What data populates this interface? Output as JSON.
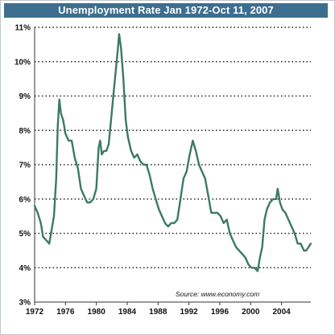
{
  "chart_data": {
    "type": "line",
    "title": "Unemployment Rate Jan 1972-Oct 11, 2007",
    "source": "Source: www.economy.com",
    "xlabel": "",
    "ylabel": "",
    "xlim": [
      1972,
      2007.8
    ],
    "ylim": [
      3,
      11
    ],
    "x_ticks": [
      "1972",
      "1976",
      "1980",
      "1984",
      "1988",
      "1992",
      "1996",
      "2000",
      "2004"
    ],
    "y_ticks": [
      "3%",
      "4%",
      "5%",
      "6%",
      "7%",
      "8%",
      "9%",
      "10%",
      "11%"
    ],
    "grid": "horizontal dotted",
    "legend": "none",
    "colors": {
      "line": "#3c7a62",
      "title_bg": "#3d6e8f",
      "grid": "#222222"
    },
    "series": [
      {
        "x": [
          1972.0,
          1972.4,
          1972.8,
          1973.1,
          1973.5,
          1973.9,
          1974.2,
          1974.5,
          1974.8,
          1975.0,
          1975.2,
          1975.4,
          1975.7,
          1976.0,
          1976.4,
          1976.8,
          1977.2,
          1977.6,
          1978.0,
          1978.4,
          1978.8,
          1979.2,
          1979.6,
          1980.0,
          1980.3,
          1980.5,
          1980.7,
          1981.0,
          1981.3,
          1981.6,
          1981.9,
          1982.2,
          1982.5,
          1982.8,
          1982.95,
          1983.2,
          1983.5,
          1983.8,
          1984.1,
          1984.5,
          1984.9,
          1985.3,
          1985.7,
          1986.1,
          1986.5,
          1986.9,
          1987.3,
          1987.7,
          1988.1,
          1988.5,
          1988.9,
          1989.3,
          1989.7,
          1990.1,
          1990.5,
          1990.9,
          1991.3,
          1991.7,
          1992.1,
          1992.5,
          1992.9,
          1993.3,
          1993.7,
          1994.1,
          1994.5,
          1994.9,
          1995.3,
          1995.7,
          1996.1,
          1996.5,
          1996.9,
          1997.3,
          1997.7,
          1998.1,
          1998.5,
          1998.9,
          1999.3,
          1999.7,
          2000.1,
          2000.5,
          2000.9,
          2001.2,
          2001.5,
          2001.8,
          2002.1,
          2002.5,
          2002.9,
          2003.3,
          2003.5,
          2003.8,
          2004.1,
          2004.5,
          2004.9,
          2005.3,
          2005.7,
          2006.1,
          2006.5,
          2006.9,
          2007.2,
          2007.5,
          2007.78
        ],
        "y": [
          5.8,
          5.6,
          5.3,
          4.9,
          4.8,
          4.7,
          5.1,
          5.5,
          6.6,
          8.1,
          8.9,
          8.5,
          8.3,
          7.9,
          7.7,
          7.7,
          7.2,
          6.9,
          6.3,
          6.1,
          5.9,
          5.9,
          6.0,
          6.3,
          7.5,
          7.7,
          7.3,
          7.4,
          7.4,
          7.6,
          8.3,
          9.0,
          9.7,
          10.4,
          10.8,
          10.4,
          9.5,
          8.3,
          7.8,
          7.4,
          7.2,
          7.3,
          7.1,
          7.0,
          7.0,
          6.7,
          6.3,
          6.0,
          5.7,
          5.5,
          5.3,
          5.2,
          5.3,
          5.3,
          5.4,
          6.0,
          6.6,
          6.8,
          7.3,
          7.7,
          7.4,
          7.0,
          6.8,
          6.6,
          6.1,
          5.6,
          5.6,
          5.6,
          5.5,
          5.3,
          5.4,
          5.0,
          4.8,
          4.6,
          4.5,
          4.4,
          4.3,
          4.1,
          4.0,
          4.0,
          3.9,
          4.3,
          4.6,
          5.4,
          5.7,
          5.9,
          6.0,
          6.0,
          6.3,
          5.9,
          5.7,
          5.6,
          5.4,
          5.2,
          5.0,
          4.7,
          4.7,
          4.5,
          4.5,
          4.6,
          4.7
        ]
      }
    ]
  }
}
